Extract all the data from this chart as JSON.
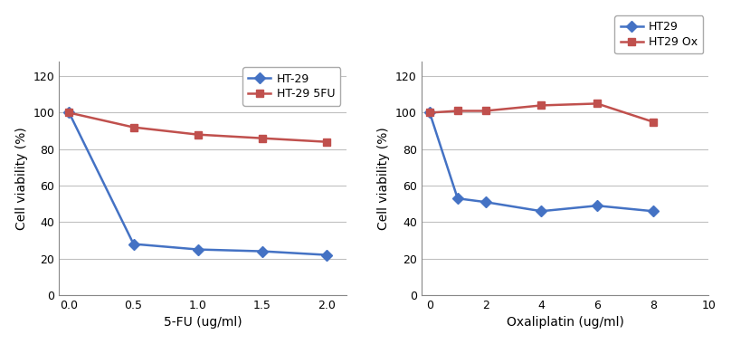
{
  "left": {
    "ht29_x": [
      0,
      0.5,
      1,
      1.5,
      2
    ],
    "ht29_y": [
      100,
      28,
      25,
      24,
      22
    ],
    "ht29_5fu_x": [
      0,
      0.5,
      1,
      1.5,
      2
    ],
    "ht29_5fu_y": [
      100,
      92,
      88,
      86,
      84
    ],
    "ht29_color": "#4472C4",
    "ht29_5fu_color": "#C0504D",
    "xlabel": "5-FU (ug/ml)",
    "ylabel": "Cell viability (%)",
    "legend_ht29": "HT-29",
    "legend_5fu": "HT-29 5FU",
    "xlim": [
      -0.08,
      2.15
    ],
    "ylim": [
      0,
      128
    ],
    "xticks": [
      0,
      0.5,
      1,
      1.5,
      2
    ],
    "yticks": [
      0,
      20,
      40,
      60,
      80,
      100,
      120
    ]
  },
  "right": {
    "ht29_x": [
      0,
      1,
      2,
      4,
      6,
      8
    ],
    "ht29_y": [
      100,
      53,
      51,
      46,
      49,
      46
    ],
    "ht29_ox_x": [
      0,
      1,
      2,
      4,
      6,
      8
    ],
    "ht29_ox_y": [
      100,
      101,
      101,
      104,
      105,
      95
    ],
    "ht29_color": "#4472C4",
    "ht29_ox_color": "#C0504D",
    "xlabel": "Oxaliplatin (ug/ml)",
    "ylabel": "Cell viability (%)",
    "legend_ht29": "HT29",
    "legend_ox": "HT29 Ox",
    "xlim": [
      -0.3,
      10
    ],
    "ylim": [
      0,
      128
    ],
    "xticks": [
      0,
      2,
      4,
      6,
      8,
      10
    ],
    "yticks": [
      0,
      20,
      40,
      60,
      80,
      100,
      120
    ]
  },
  "bg_color": "#FFFFFF",
  "grid_color": "#C0C0C0",
  "marker_size": 6,
  "linewidth": 1.8,
  "fontsize_label": 10,
  "fontsize_tick": 9,
  "fontsize_legend": 9
}
